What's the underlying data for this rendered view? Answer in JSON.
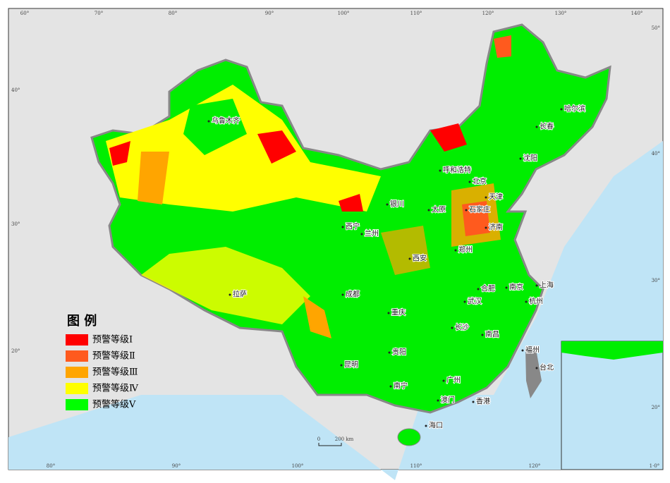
{
  "legend": {
    "title": "图  例",
    "items": [
      {
        "label": "预警等级Ⅰ",
        "color": "#ff0000"
      },
      {
        "label": "预警等级Ⅱ",
        "color": "#ff5a1e"
      },
      {
        "label": "预警等级Ⅲ",
        "color": "#ffa500"
      },
      {
        "label": "预警等级Ⅳ",
        "color": "#ffff00"
      },
      {
        "label": "预警等级Ⅴ",
        "color": "#00ff00"
      }
    ]
  },
  "cities": [
    "乌鲁木齐",
    "呼和浩特",
    "北京",
    "天津",
    "哈尔滨",
    "长春",
    "沈阳",
    "石家庄",
    "太原",
    "银川",
    "西宁",
    "兰州",
    "济南",
    "郑州",
    "西安",
    "拉萨",
    "成都",
    "合肥",
    "南京",
    "上海",
    "杭州",
    "武汉",
    "重庆",
    "长沙",
    "南昌",
    "贵阳",
    "福州",
    "台北",
    "昆明",
    "南宁",
    "广州",
    "澳门",
    "香港",
    "海口"
  ],
  "graticule": {
    "top": [
      "60°",
      "70°",
      "80°",
      "90°",
      "100°",
      "110°",
      "120°",
      "130°",
      "140°"
    ],
    "left": [
      "40°",
      "30°",
      "20°"
    ],
    "right": [
      "50°",
      "40°",
      "30°",
      "20°"
    ],
    "bottom": [
      "80°",
      "90°",
      "100°",
      "110°",
      "120°",
      "1·0°"
    ]
  },
  "scale": {
    "start": "0",
    "end": "200 km"
  }
}
